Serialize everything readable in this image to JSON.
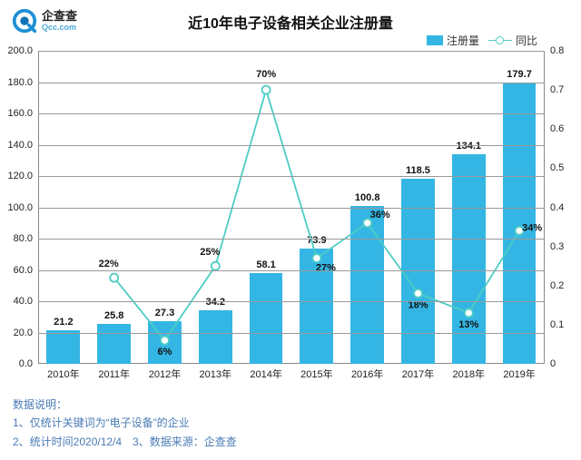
{
  "logo": {
    "name": "企查查",
    "sub": "Qcc.com",
    "color1": "#1f8fd6",
    "color2": "#1073b8"
  },
  "title": "近10年电子设备相关企业注册量",
  "legend": {
    "bar": "注册量",
    "line": "同比"
  },
  "colors": {
    "bar": "#34b6e4",
    "line": "#4ecdc4",
    "axis": "#888888",
    "grid": "#999999",
    "background": "#ffffff",
    "text": "#111111",
    "noteText": "#4a7bb5"
  },
  "chart": {
    "type": "bar+line",
    "categories": [
      "2010年",
      "2011年",
      "2012年",
      "2013年",
      "2014年",
      "2015年",
      "2016年",
      "2017年",
      "2018年",
      "2019年"
    ],
    "bar_values": [
      21.2,
      25.8,
      27.3,
      34.2,
      58.1,
      73.9,
      100.8,
      118.5,
      134.1,
      179.7
    ],
    "line_values_pct": [
      null,
      22,
      6,
      25,
      70,
      27,
      36,
      18,
      13,
      34
    ],
    "y_left": {
      "min": 0,
      "max": 200,
      "step": 20
    },
    "y_right": {
      "min": 0,
      "max": 0.8,
      "step": 0.1
    },
    "bar_width": 0.66,
    "marker": "circle",
    "marker_size": 9,
    "title_fontsize": 16,
    "tick_fontsize": 11,
    "label_fontsize": 11,
    "line_label_offsets": [
      null,
      [
        -6,
        -12
      ],
      [
        0,
        16
      ],
      [
        -6,
        -12
      ],
      [
        0,
        -14
      ],
      [
        10,
        14
      ],
      [
        14,
        -6
      ],
      [
        0,
        16
      ],
      [
        0,
        16
      ],
      [
        14,
        0
      ]
    ]
  },
  "notes": {
    "heading": "数据说明：",
    "line1": "1、仅统计关键词为“电子设备”的企业",
    "line2": "2、统计时间2020/12/4　3、数据来源：企查查"
  }
}
